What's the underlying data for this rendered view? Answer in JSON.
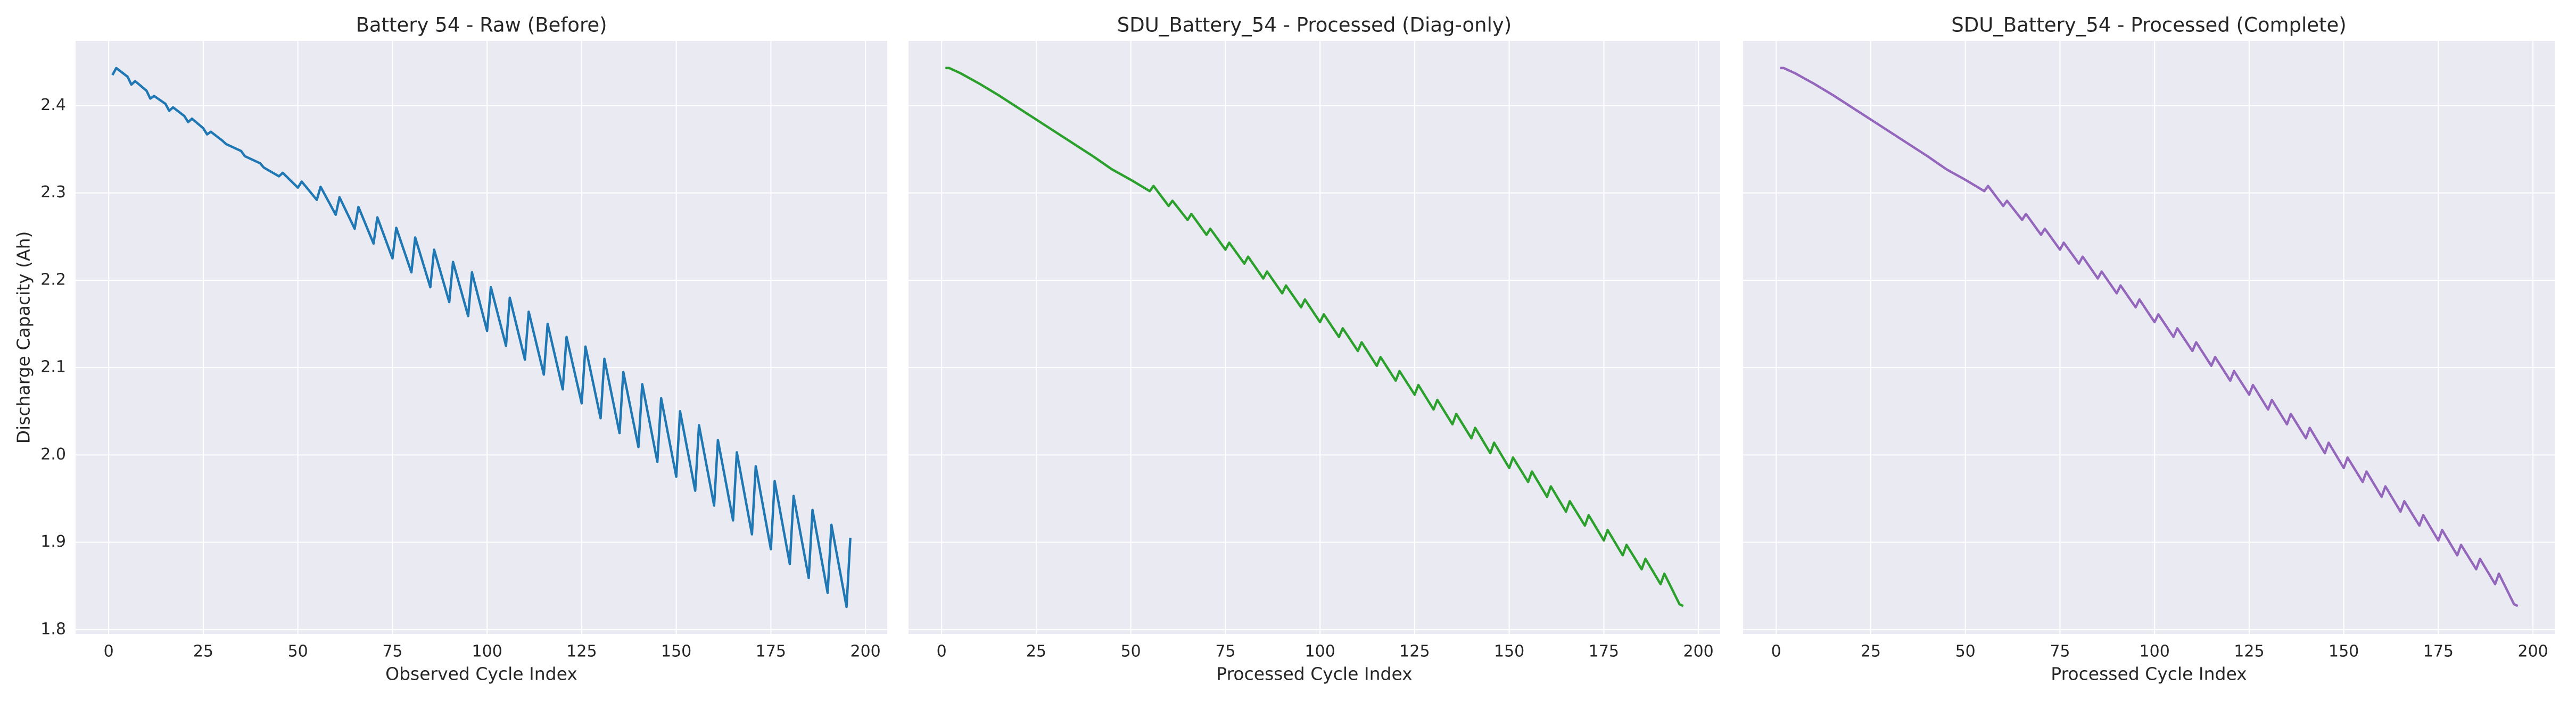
{
  "chart_data": [
    {
      "type": "line",
      "title": "Battery 54 - Raw (Before)",
      "xlabel": "Observed Cycle Index",
      "ylabel": "Discharge Capacity (Ah)",
      "color": "#1f77b4",
      "grid": true,
      "show_ytick_labels": true,
      "xlim": [
        -8.75,
        205.75
      ],
      "xticks": [
        0,
        25,
        50,
        75,
        100,
        125,
        150,
        175,
        200
      ],
      "ylim": [
        1.795,
        2.474
      ],
      "yticks": [
        1.8,
        1.9,
        {
          "value": 2,
          "label": "2.0"
        },
        2.1,
        2.2,
        2.3,
        2.4
      ],
      "x": [
        1,
        2,
        5,
        6,
        7,
        10,
        11,
        12,
        15,
        16,
        17,
        20,
        21,
        22,
        25,
        26,
        27,
        30,
        31,
        35,
        36,
        40,
        41,
        45,
        46,
        50,
        51,
        55,
        56,
        60,
        61,
        65,
        66,
        70,
        71,
        75,
        76,
        80,
        81,
        85,
        86,
        90,
        91,
        95,
        96,
        100,
        101,
        105,
        106,
        110,
        111,
        115,
        116,
        120,
        121,
        125,
        126,
        130,
        131,
        135,
        136,
        140,
        141,
        145,
        146,
        150,
        151,
        155,
        156,
        160,
        161,
        165,
        166,
        170,
        171,
        175,
        176,
        180,
        181,
        185,
        186,
        190,
        191,
        195,
        196
      ],
      "values": [
        2.435,
        2.443,
        2.433,
        2.424,
        2.428,
        2.417,
        2.408,
        2.411,
        2.402,
        2.394,
        2.398,
        2.388,
        2.381,
        2.385,
        2.374,
        2.367,
        2.37,
        2.36,
        2.356,
        2.348,
        2.342,
        2.334,
        2.329,
        2.319,
        2.323,
        2.306,
        2.313,
        2.292,
        2.307,
        2.275,
        2.295,
        2.259,
        2.284,
        2.242,
        2.272,
        2.225,
        2.26,
        2.209,
        2.249,
        2.192,
        2.235,
        2.175,
        2.221,
        2.159,
        2.209,
        2.142,
        2.192,
        2.125,
        2.18,
        2.109,
        2.164,
        2.092,
        2.15,
        2.075,
        2.135,
        2.059,
        2.124,
        2.042,
        2.11,
        2.025,
        2.095,
        2.009,
        2.081,
        1.992,
        2.065,
        1.975,
        2.05,
        1.959,
        2.034,
        1.942,
        2.017,
        1.925,
        2.003,
        1.909,
        1.987,
        1.892,
        1.97,
        1.875,
        1.953,
        1.859,
        1.937,
        1.842,
        1.92,
        1.826,
        1.905
      ]
    },
    {
      "type": "line",
      "title": "SDU_Battery_54 - Processed (Diag-only)",
      "xlabel": "Processed Cycle Index",
      "color": "#2ca02c",
      "grid": true,
      "show_ytick_labels": false,
      "xlim": [
        -8.75,
        205.75
      ],
      "xticks": [
        0,
        25,
        50,
        75,
        100,
        125,
        150,
        175,
        200
      ],
      "ylim": [
        1.795,
        2.474
      ],
      "yticks": [
        1.8,
        1.9,
        {
          "value": 2,
          "label": "2.0"
        },
        2.1,
        2.2,
        2.3,
        2.4
      ],
      "x": [
        1,
        2,
        5,
        10,
        15,
        20,
        25,
        30,
        35,
        40,
        45,
        50,
        55,
        56,
        60,
        61,
        65,
        66,
        70,
        71,
        75,
        76,
        80,
        81,
        85,
        86,
        90,
        91,
        95,
        96,
        100,
        101,
        105,
        106,
        110,
        111,
        115,
        116,
        120,
        121,
        125,
        126,
        130,
        131,
        135,
        136,
        140,
        141,
        145,
        146,
        150,
        151,
        155,
        156,
        160,
        161,
        165,
        166,
        170,
        171,
        175,
        176,
        180,
        181,
        185,
        186,
        190,
        191,
        195,
        196
      ],
      "values": [
        2.443,
        2.443,
        2.437,
        2.425,
        2.412,
        2.398,
        2.384,
        2.37,
        2.356,
        2.342,
        2.327,
        2.315,
        2.302,
        2.308,
        2.285,
        2.291,
        2.269,
        2.276,
        2.252,
        2.259,
        2.235,
        2.243,
        2.219,
        2.227,
        2.202,
        2.21,
        2.185,
        2.194,
        2.169,
        2.178,
        2.152,
        2.161,
        2.135,
        2.145,
        2.119,
        2.129,
        2.102,
        2.112,
        2.085,
        2.096,
        2.069,
        2.08,
        2.052,
        2.063,
        2.035,
        2.047,
        2.019,
        2.031,
        2.002,
        2.014,
        1.985,
        1.997,
        1.969,
        1.981,
        1.952,
        1.964,
        1.935,
        1.947,
        1.919,
        1.931,
        1.902,
        1.914,
        1.885,
        1.897,
        1.869,
        1.881,
        1.852,
        1.864,
        1.829,
        1.827
      ]
    },
    {
      "type": "line",
      "title": "SDU_Battery_54 - Processed (Complete)",
      "xlabel": "Processed Cycle Index",
      "color": "#9467bd",
      "grid": true,
      "show_ytick_labels": false,
      "xlim": [
        -8.75,
        205.75
      ],
      "xticks": [
        0,
        25,
        50,
        75,
        100,
        125,
        150,
        175,
        200
      ],
      "ylim": [
        1.795,
        2.474
      ],
      "yticks": [
        1.8,
        1.9,
        {
          "value": 2,
          "label": "2.0"
        },
        2.1,
        2.2,
        2.3,
        2.4
      ],
      "x": [
        1,
        2,
        5,
        10,
        15,
        20,
        25,
        30,
        35,
        40,
        45,
        50,
        55,
        56,
        60,
        61,
        65,
        66,
        70,
        71,
        75,
        76,
        80,
        81,
        85,
        86,
        90,
        91,
        95,
        96,
        100,
        101,
        105,
        106,
        110,
        111,
        115,
        116,
        120,
        121,
        125,
        126,
        130,
        131,
        135,
        136,
        140,
        141,
        145,
        146,
        150,
        151,
        155,
        156,
        160,
        161,
        165,
        166,
        170,
        171,
        175,
        176,
        180,
        181,
        185,
        186,
        190,
        191,
        195,
        196
      ],
      "values": [
        2.443,
        2.443,
        2.437,
        2.425,
        2.412,
        2.398,
        2.384,
        2.37,
        2.356,
        2.342,
        2.327,
        2.315,
        2.302,
        2.308,
        2.285,
        2.291,
        2.269,
        2.276,
        2.252,
        2.259,
        2.235,
        2.243,
        2.219,
        2.227,
        2.202,
        2.21,
        2.185,
        2.194,
        2.169,
        2.178,
        2.152,
        2.161,
        2.135,
        2.145,
        2.119,
        2.129,
        2.102,
        2.112,
        2.085,
        2.096,
        2.069,
        2.08,
        2.052,
        2.063,
        2.035,
        2.047,
        2.019,
        2.031,
        2.002,
        2.014,
        1.985,
        1.997,
        1.969,
        1.981,
        1.952,
        1.964,
        1.935,
        1.947,
        1.919,
        1.931,
        1.902,
        1.914,
        1.885,
        1.897,
        1.869,
        1.881,
        1.852,
        1.864,
        1.829,
        1.827
      ]
    }
  ]
}
